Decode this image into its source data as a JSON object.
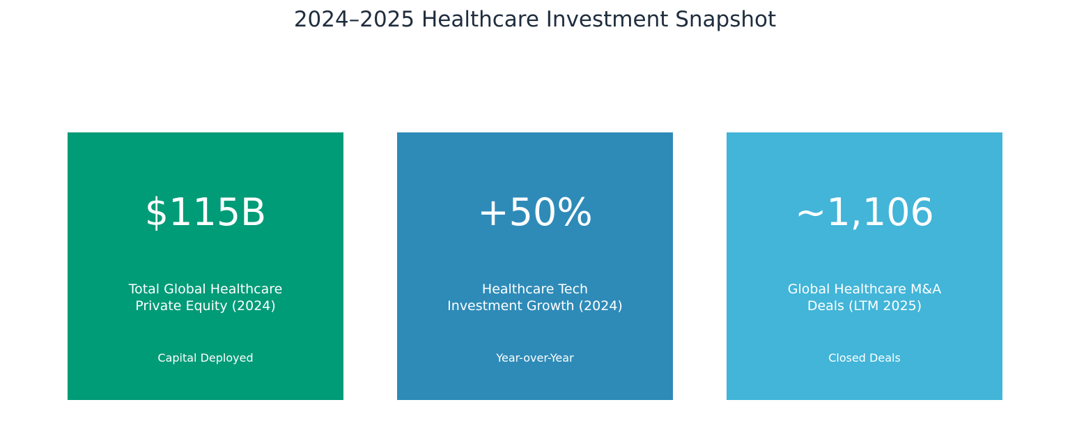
{
  "header": {
    "title": "2024–2025 Healthcare Investment Snapshot"
  },
  "cards": [
    {
      "value": "$115B",
      "label_lines": [
        "Total Global Healthcare",
        "Private Equity (2024)"
      ],
      "note": "Capital Deployed",
      "color": "#009b77"
    },
    {
      "value": "+50%",
      "label_lines": [
        "Healthcare Tech",
        "Investment Growth (2024)"
      ],
      "note": "Year-over-Year",
      "color": "#2e8bb8"
    },
    {
      "value": "~1,106",
      "label_lines": [
        "Global Healthcare M&A",
        "Deals (LTM 2025)"
      ],
      "note": "Closed Deals",
      "color": "#42b5d8"
    }
  ]
}
